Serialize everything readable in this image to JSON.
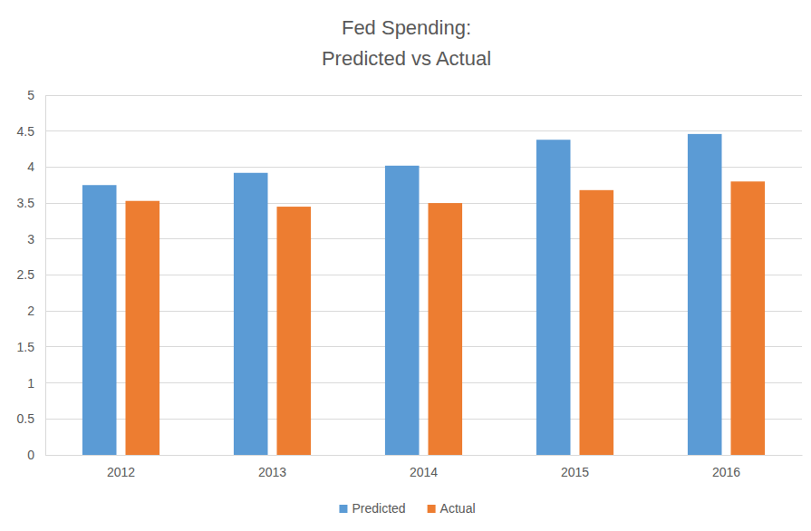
{
  "chart_data": {
    "type": "bar",
    "title": "Fed Spending:\nPredicted vs Actual",
    "categories": [
      "2012",
      "2013",
      "2014",
      "2015",
      "2016"
    ],
    "series": [
      {
        "name": "Predicted",
        "color": "#5b9bd5",
        "values": [
          3.75,
          3.92,
          4.02,
          4.38,
          4.46
        ]
      },
      {
        "name": "Actual",
        "color": "#ed7d31",
        "values": [
          3.53,
          3.45,
          3.5,
          3.68,
          3.8
        ]
      }
    ],
    "ylim": [
      0,
      5
    ],
    "yticks": [
      0,
      0.5,
      1,
      1.5,
      2,
      2.5,
      3,
      3.5,
      4,
      4.5,
      5
    ],
    "grid": true,
    "legend": "bottom"
  }
}
